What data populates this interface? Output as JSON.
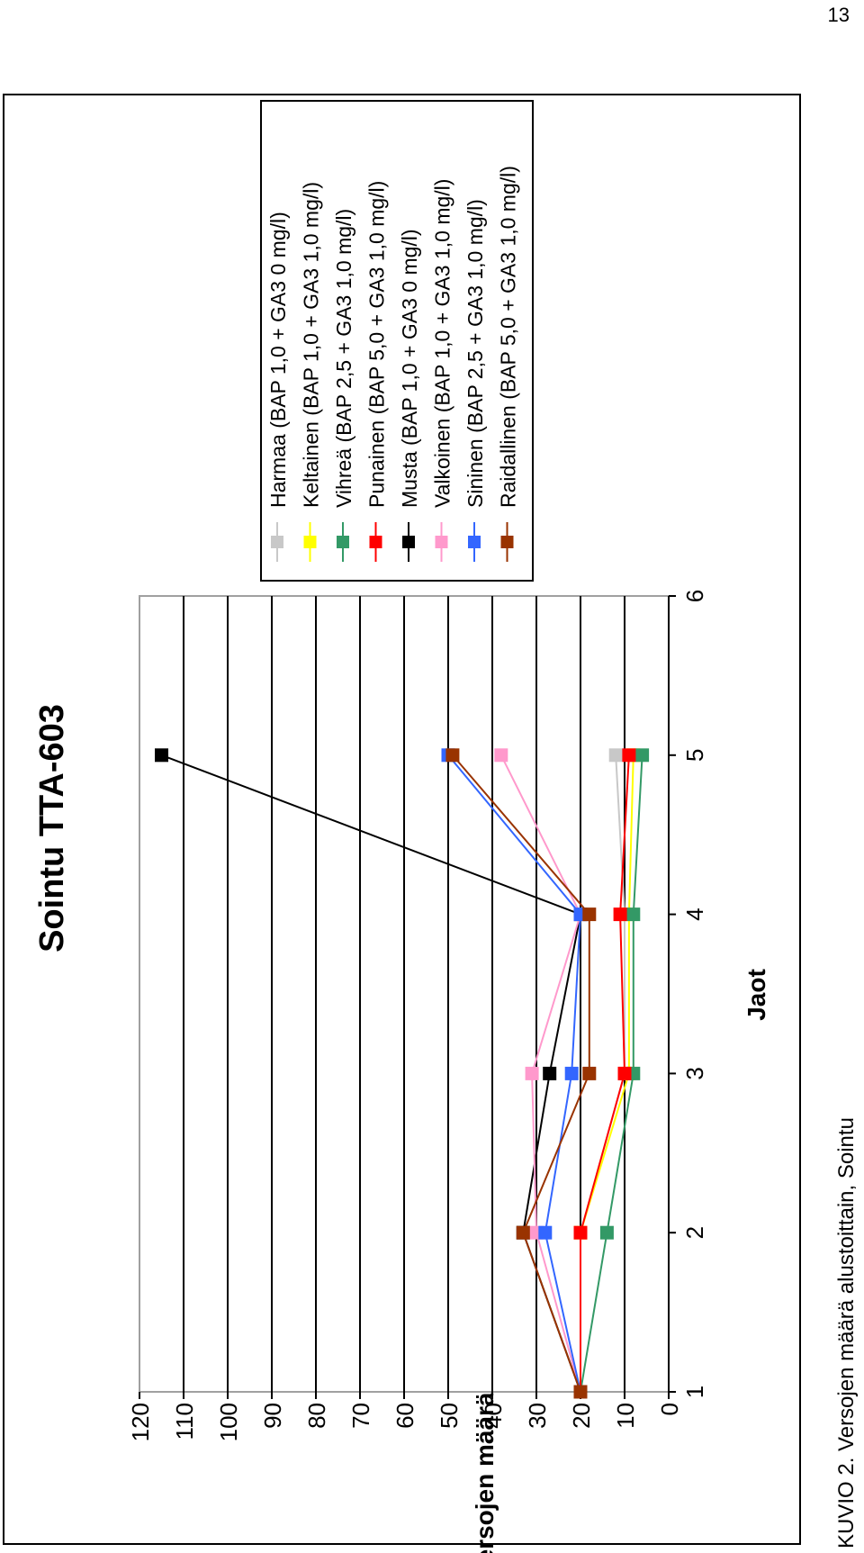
{
  "page": {
    "number": "13"
  },
  "caption": "KUVIO 2. Versojen määrä alustoittain, Sointu",
  "chart_data": {
    "type": "line",
    "title": "Sointu TTA-603",
    "xlabel": "Jaot",
    "ylabel": "Versojen määrä",
    "x": [
      1,
      2,
      3,
      4,
      5
    ],
    "xlim": [
      1,
      6
    ],
    "xticks": [
      1,
      2,
      3,
      4,
      5,
      6
    ],
    "ylim": [
      0,
      120
    ],
    "yticks": [
      0,
      10,
      20,
      30,
      40,
      50,
      60,
      70,
      80,
      90,
      100,
      110,
      120
    ],
    "grid": true,
    "legend_position": "right",
    "orientation": "rotated 90° clockwise",
    "series": [
      {
        "name": "Harmaa (BAP 1,0 + GA3 0 mg/l)",
        "color": "#c8c8c8",
        "values": [
          20,
          20,
          10,
          10,
          12
        ]
      },
      {
        "name": "Keltainen (BAP 1,0 + GA3 1,0 mg/l)",
        "color": "#ffff00",
        "values": [
          20,
          20,
          9,
          9,
          8
        ]
      },
      {
        "name": "Vihreä (BAP 2,5 + GA3 1,0 mg/l)",
        "color": "#339966",
        "values": [
          20,
          14,
          8,
          8,
          6
        ]
      },
      {
        "name": "Punainen (BAP 5,0 + GA3 1,0 mg/l)",
        "color": "#ff0000",
        "values": [
          20,
          20,
          10,
          11,
          9
        ]
      },
      {
        "name": "Musta (BAP 1,0 + GA3 0 mg/l)",
        "color": "#000000",
        "values": [
          20,
          33,
          27,
          20,
          115
        ]
      },
      {
        "name": "Valkoinen (BAP 1,0 + GA3 1,0 mg/l)",
        "color": "#ff99cc",
        "values": [
          20,
          30,
          31,
          20,
          38
        ]
      },
      {
        "name": "Sininen (BAP 2,5 + GA3 1,0 mg/l)",
        "color": "#3366ff",
        "values": [
          20,
          28,
          22,
          20,
          50
        ]
      },
      {
        "name": "Raidallinen (BAP 5,0 + GA3 1,0 mg/l)",
        "color": "#993300",
        "values": [
          20,
          33,
          18,
          18,
          49
        ]
      }
    ]
  }
}
